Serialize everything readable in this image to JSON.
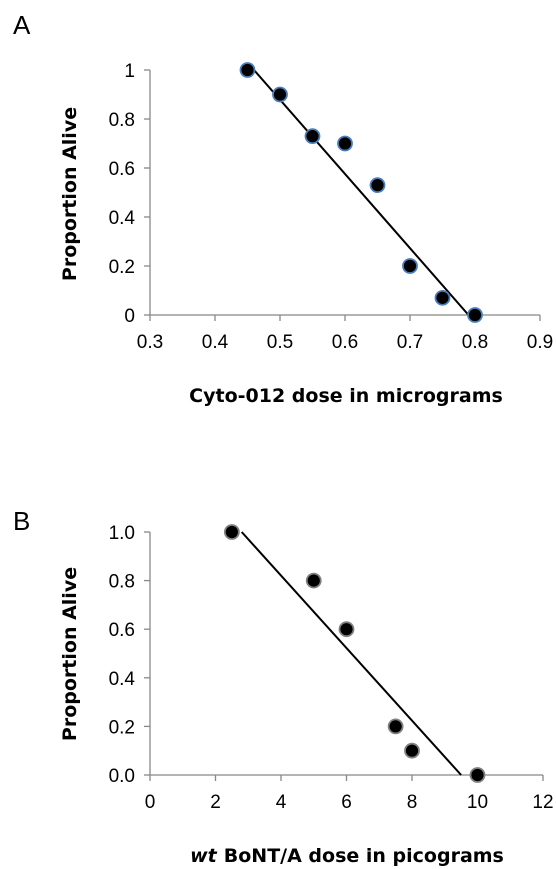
{
  "chart_data": [
    {
      "type": "scatter",
      "panel_label": "A",
      "xlabel": "Cyto-012 dose in micrograms",
      "xlabel_prefix": "",
      "ylabel": "Proportion Alive",
      "xlim": [
        0.3,
        0.9
      ],
      "ylim": [
        0,
        1
      ],
      "x_ticks": [
        "0.3",
        "0.4",
        "0.5",
        "0.6",
        "0.7",
        "0.8",
        "0.9"
      ],
      "y_ticks": [
        "0",
        "0.2",
        "0.4",
        "0.6",
        "0.8",
        "1"
      ],
      "grid": false,
      "marker_color": "#000000",
      "marker_edge_color": "#4a7ebb",
      "points": [
        {
          "x": 0.45,
          "y": 1.0
        },
        {
          "x": 0.5,
          "y": 0.9
        },
        {
          "x": 0.55,
          "y": 0.73
        },
        {
          "x": 0.6,
          "y": 0.7
        },
        {
          "x": 0.65,
          "y": 0.53
        },
        {
          "x": 0.7,
          "y": 0.2
        },
        {
          "x": 0.75,
          "y": 0.07
        },
        {
          "x": 0.8,
          "y": 0.0
        }
      ],
      "trendline": {
        "x": [
          0.46,
          0.79
        ],
        "y": [
          1.0,
          0.0
        ]
      }
    },
    {
      "type": "scatter",
      "panel_label": "B",
      "xlabel": "BoNT/A dose in picograms",
      "xlabel_prefix": "wt",
      "ylabel": "Proportion Alive",
      "xlim": [
        0,
        12
      ],
      "ylim": [
        0,
        1
      ],
      "x_ticks": [
        "0",
        "2",
        "4",
        "6",
        "8",
        "10",
        "12"
      ],
      "y_ticks": [
        "0.0",
        "0.2",
        "0.4",
        "0.6",
        "0.8",
        "1.0"
      ],
      "grid": false,
      "marker_color": "#000000",
      "marker_edge_color": "#808080",
      "points": [
        {
          "x": 2.5,
          "y": 1.0
        },
        {
          "x": 5.0,
          "y": 0.8
        },
        {
          "x": 6.0,
          "y": 0.6
        },
        {
          "x": 7.5,
          "y": 0.2
        },
        {
          "x": 8.0,
          "y": 0.1
        },
        {
          "x": 10.0,
          "y": 0.0
        }
      ],
      "trendline": {
        "x": [
          2.8,
          9.5
        ],
        "y": [
          1.0,
          0.0
        ]
      }
    }
  ]
}
